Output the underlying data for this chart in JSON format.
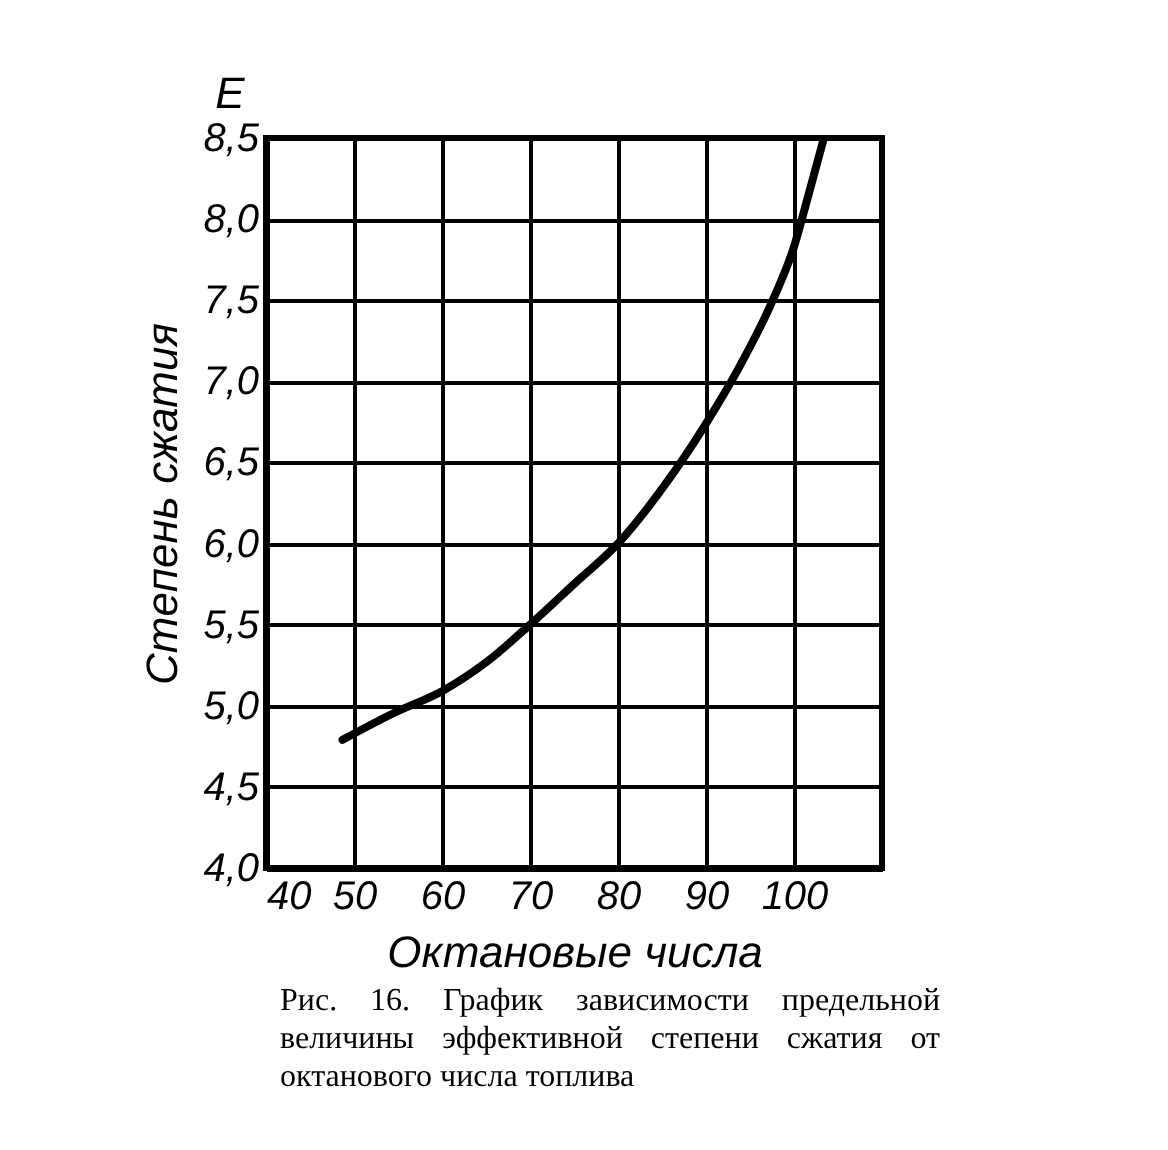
{
  "chart_data": {
    "type": "line",
    "title": "Рис. 16. График зависимости предельной величины эффективной степени сжатия от октанового числа топлива",
    "xlabel": "Октановые числа",
    "ylabel": "Степень сжатия",
    "annotations": [
      "E"
    ],
    "x": [
      48.7,
      54.7,
      60,
      65.3,
      70,
      75.2,
      80,
      85.3,
      90,
      93.7,
      97.5,
      100,
      101.4,
      103.4
    ],
    "series": [
      {
        "color": "#000000",
        "values": [
          4.79,
          4.96,
          5.09,
          5.28,
          5.5,
          5.76,
          6.0,
          6.36,
          6.74,
          7.08,
          7.49,
          7.83,
          8.1,
          8.5
        ]
      }
    ],
    "xlim": [
      40,
      110
    ],
    "xticks": [
      40,
      50,
      60,
      70,
      80,
      90,
      100
    ],
    "ylim": [
      4,
      8.5
    ],
    "yticks": [
      {
        "value": 4,
        "label": "4,0"
      },
      {
        "value": 4.5,
        "label": "4,5"
      },
      {
        "value": 5,
        "label": "5,0"
      },
      {
        "value": 5.5,
        "label": "5,5"
      },
      {
        "value": 6,
        "label": "6,0"
      },
      {
        "value": 6.5,
        "label": "6,5"
      },
      {
        "value": 7,
        "label": "7,0"
      },
      {
        "value": 7.5,
        "label": "7,5"
      },
      {
        "value": 8,
        "label": "8,0"
      },
      {
        "value": 8.5,
        "label": "8,5"
      }
    ],
    "grid": true,
    "marker": "none",
    "line_style": "solid"
  }
}
